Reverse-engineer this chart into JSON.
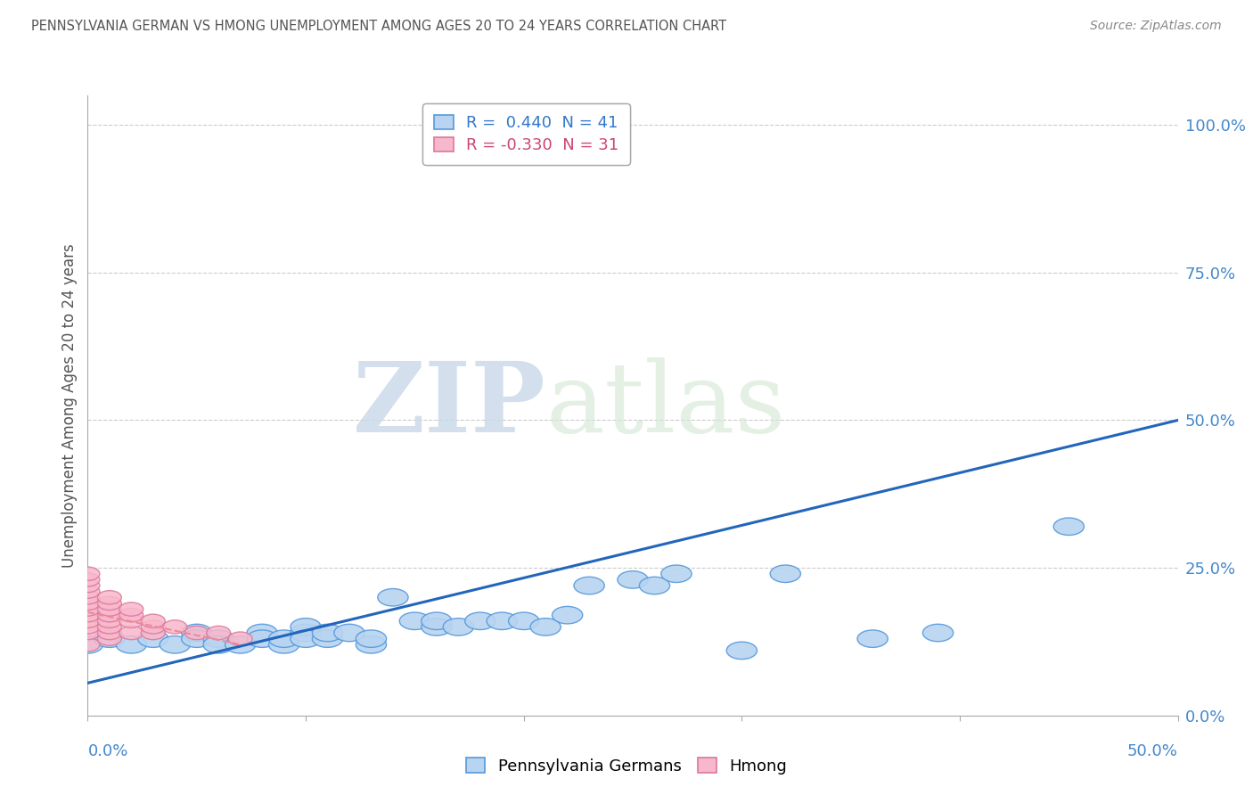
{
  "title": "PENNSYLVANIA GERMAN VS HMONG UNEMPLOYMENT AMONG AGES 20 TO 24 YEARS CORRELATION CHART",
  "source": "Source: ZipAtlas.com",
  "ylabel": "Unemployment Among Ages 20 to 24 years",
  "xlim": [
    0.0,
    0.5
  ],
  "ylim": [
    0.0,
    1.05
  ],
  "pg_R": 0.44,
  "pg_N": 41,
  "hmong_R": -0.33,
  "hmong_N": 31,
  "pg_color": "#b8d4f0",
  "pg_edge_color": "#5599dd",
  "hmong_color": "#f8b8cc",
  "hmong_edge_color": "#dd7799",
  "line_color": "#2266bb",
  "hmong_line_color": "#ee8899",
  "ytick_positions": [
    0.0,
    0.25,
    0.5,
    0.75,
    1.0
  ],
  "ytick_labels": [
    "0.0%",
    "25.0%",
    "50.0%",
    "75.0%",
    "100.0%"
  ],
  "grid_color": "#cccccc",
  "pg_points": [
    [
      0.0,
      0.12
    ],
    [
      0.01,
      0.13
    ],
    [
      0.02,
      0.12
    ],
    [
      0.03,
      0.13
    ],
    [
      0.04,
      0.12
    ],
    [
      0.05,
      0.14
    ],
    [
      0.05,
      0.13
    ],
    [
      0.06,
      0.13
    ],
    [
      0.06,
      0.12
    ],
    [
      0.07,
      0.12
    ],
    [
      0.08,
      0.14
    ],
    [
      0.08,
      0.13
    ],
    [
      0.09,
      0.12
    ],
    [
      0.09,
      0.13
    ],
    [
      0.1,
      0.14
    ],
    [
      0.1,
      0.15
    ],
    [
      0.1,
      0.13
    ],
    [
      0.11,
      0.13
    ],
    [
      0.11,
      0.14
    ],
    [
      0.12,
      0.14
    ],
    [
      0.13,
      0.12
    ],
    [
      0.13,
      0.13
    ],
    [
      0.14,
      0.2
    ],
    [
      0.15,
      0.16
    ],
    [
      0.16,
      0.15
    ],
    [
      0.16,
      0.16
    ],
    [
      0.17,
      0.15
    ],
    [
      0.18,
      0.16
    ],
    [
      0.19,
      0.16
    ],
    [
      0.2,
      0.16
    ],
    [
      0.21,
      0.15
    ],
    [
      0.22,
      0.17
    ],
    [
      0.23,
      0.22
    ],
    [
      0.25,
      0.23
    ],
    [
      0.26,
      0.22
    ],
    [
      0.27,
      0.24
    ],
    [
      0.3,
      0.11
    ],
    [
      0.32,
      0.24
    ],
    [
      0.36,
      0.13
    ],
    [
      0.39,
      0.14
    ],
    [
      0.45,
      0.32
    ]
  ],
  "hmong_points": [
    [
      0.0,
      0.12
    ],
    [
      0.0,
      0.14
    ],
    [
      0.0,
      0.15
    ],
    [
      0.0,
      0.16
    ],
    [
      0.0,
      0.17
    ],
    [
      0.0,
      0.18
    ],
    [
      0.0,
      0.19
    ],
    [
      0.0,
      0.2
    ],
    [
      0.0,
      0.21
    ],
    [
      0.0,
      0.22
    ],
    [
      0.0,
      0.23
    ],
    [
      0.0,
      0.24
    ],
    [
      0.01,
      0.13
    ],
    [
      0.01,
      0.14
    ],
    [
      0.01,
      0.15
    ],
    [
      0.01,
      0.16
    ],
    [
      0.01,
      0.17
    ],
    [
      0.01,
      0.18
    ],
    [
      0.01,
      0.19
    ],
    [
      0.01,
      0.2
    ],
    [
      0.02,
      0.14
    ],
    [
      0.02,
      0.16
    ],
    [
      0.02,
      0.17
    ],
    [
      0.02,
      0.18
    ],
    [
      0.03,
      0.14
    ],
    [
      0.03,
      0.15
    ],
    [
      0.03,
      0.16
    ],
    [
      0.04,
      0.15
    ],
    [
      0.05,
      0.14
    ],
    [
      0.06,
      0.14
    ],
    [
      0.07,
      0.13
    ]
  ],
  "pg_line_x": [
    0.0,
    0.5
  ],
  "pg_line_y": [
    0.055,
    0.5
  ],
  "hmong_line_x": [
    0.0,
    0.07
  ],
  "hmong_line_y": [
    0.175,
    0.12
  ],
  "watermark_zip": "ZIP",
  "watermark_atlas": "atlas",
  "legend1_label1": "R =  0.440  N = 41",
  "legend1_label2": "R = -0.330  N = 31",
  "legend2_label1": "Pennsylvania Germans",
  "legend2_label2": "Hmong"
}
